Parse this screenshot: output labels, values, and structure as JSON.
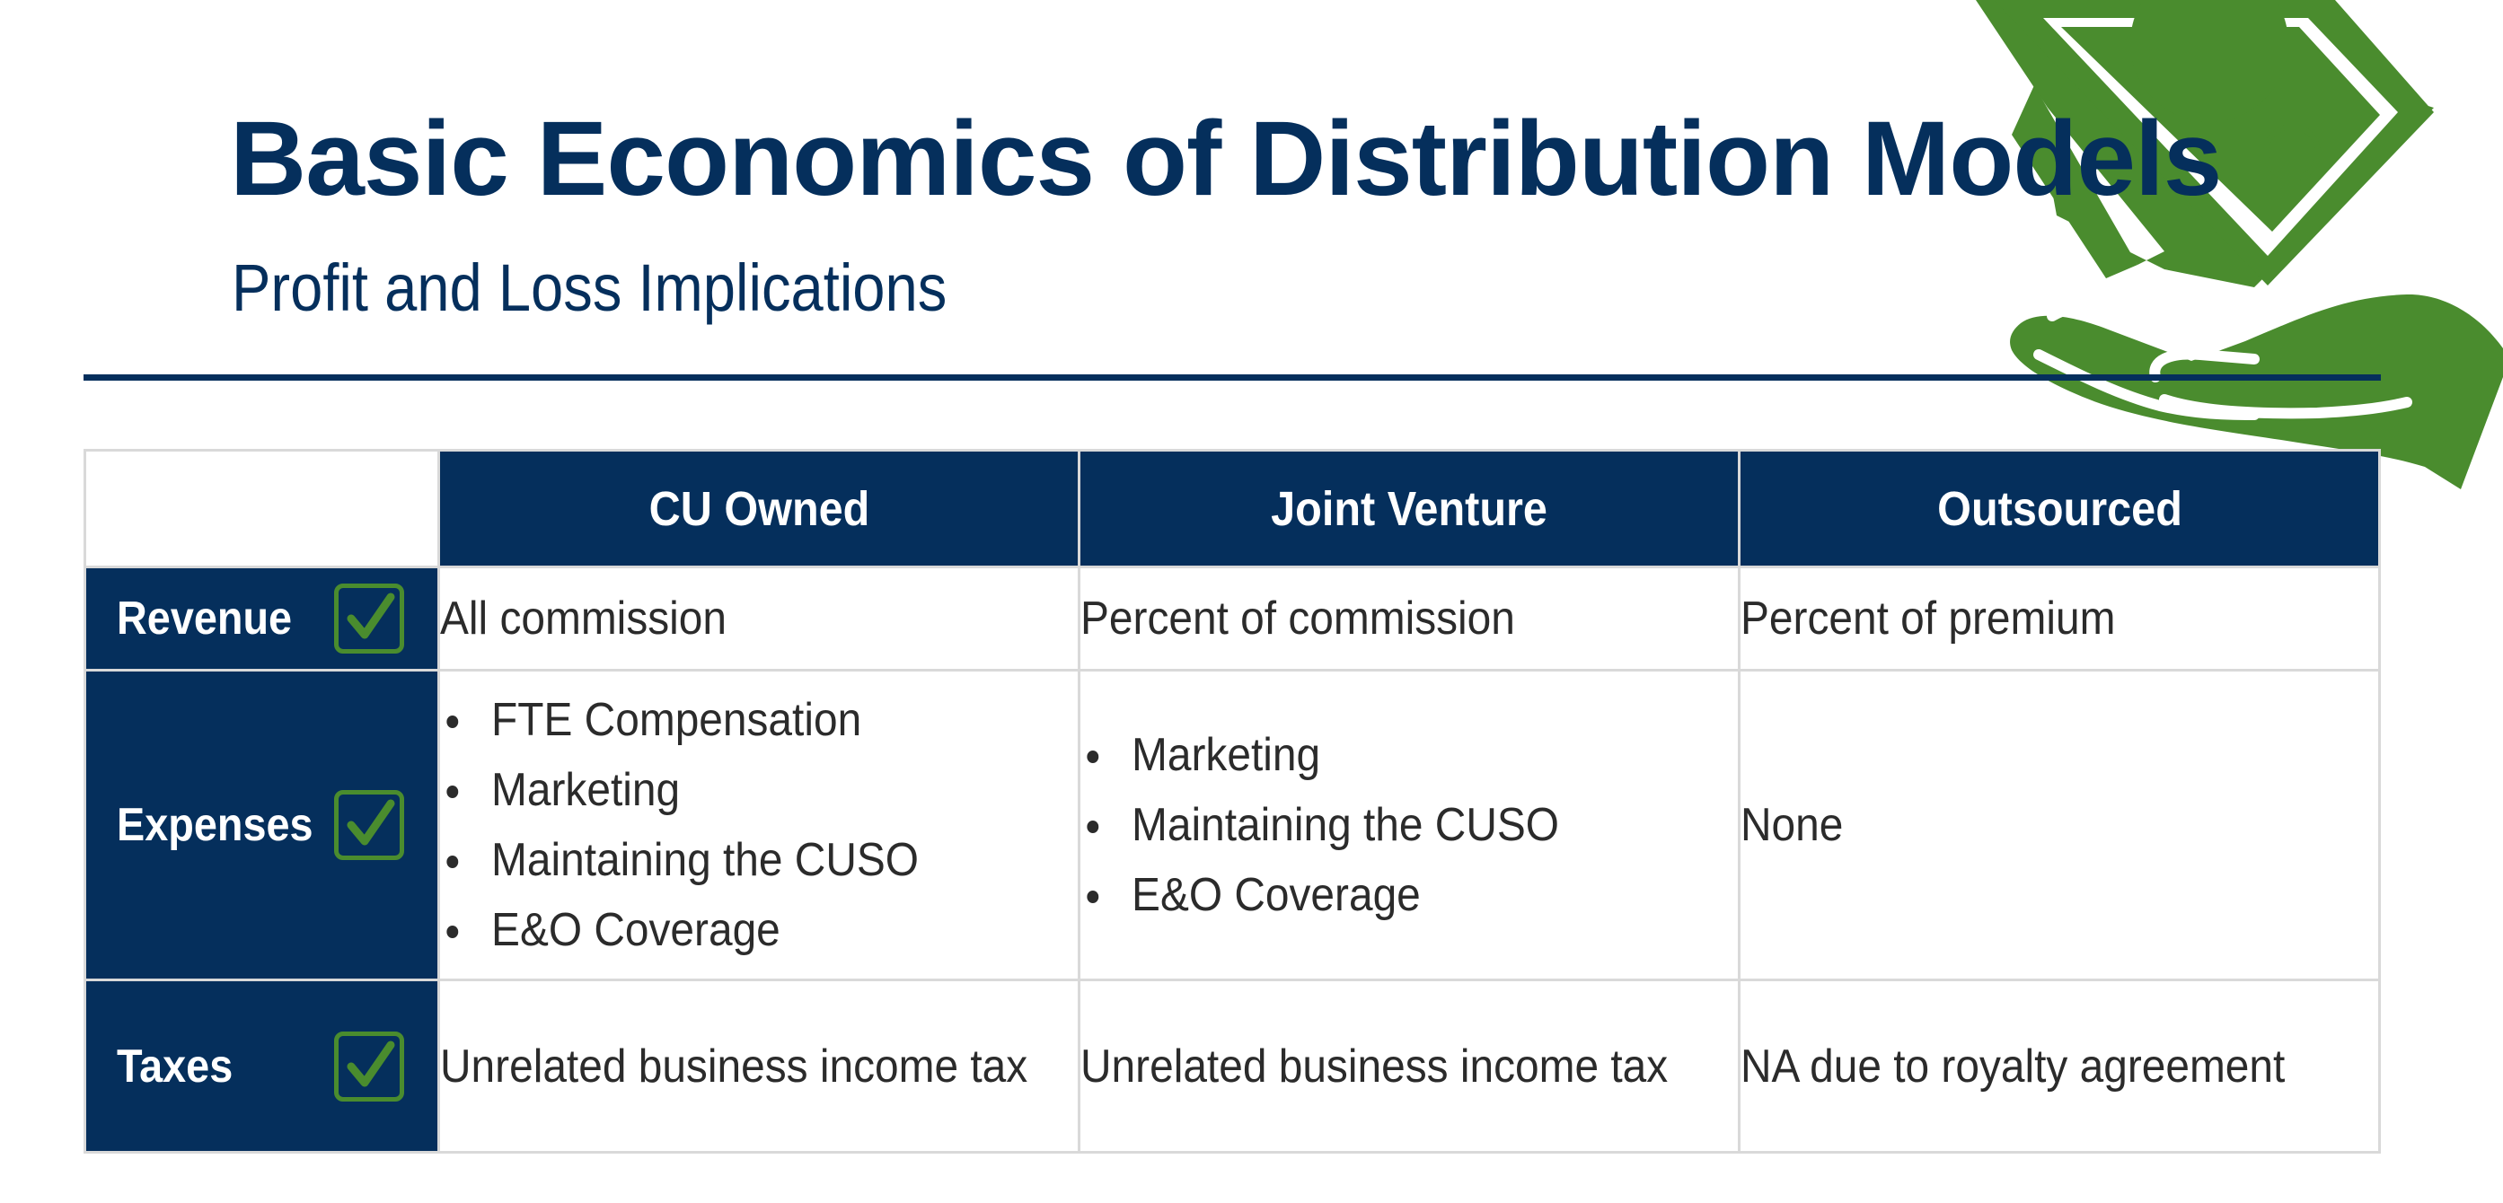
{
  "slide": {
    "title": "Basic Economics of Distribution Models",
    "subtitle": "Profit and Loss Implications"
  },
  "colors": {
    "navy": "#052f5c",
    "green": "#4a8c2e",
    "border": "#d9d9d9"
  },
  "icons": {
    "decoration": "money-in-hand-icon",
    "row_marker": "checkmark-icon"
  },
  "table": {
    "columns": [
      "CU Owned",
      "Joint Venture",
      "Outsourced"
    ],
    "rows": [
      {
        "label": "Revenue",
        "cu_owned": "All commission",
        "joint_venture": "Percent of commission",
        "outsourced": "Percent of premium"
      },
      {
        "label": "Expenses",
        "cu_owned": [
          "FTE Compensation",
          "Marketing",
          "Maintaining the CUSO",
          "E&O Coverage"
        ],
        "joint_venture": [
          "Marketing",
          "Maintaining the CUSO",
          "E&O Coverage"
        ],
        "outsourced": "None"
      },
      {
        "label": "Taxes",
        "cu_owned": "Unrelated business income tax",
        "joint_venture": "Unrelated business income tax",
        "outsourced": "NA due to royalty agreement"
      }
    ]
  }
}
